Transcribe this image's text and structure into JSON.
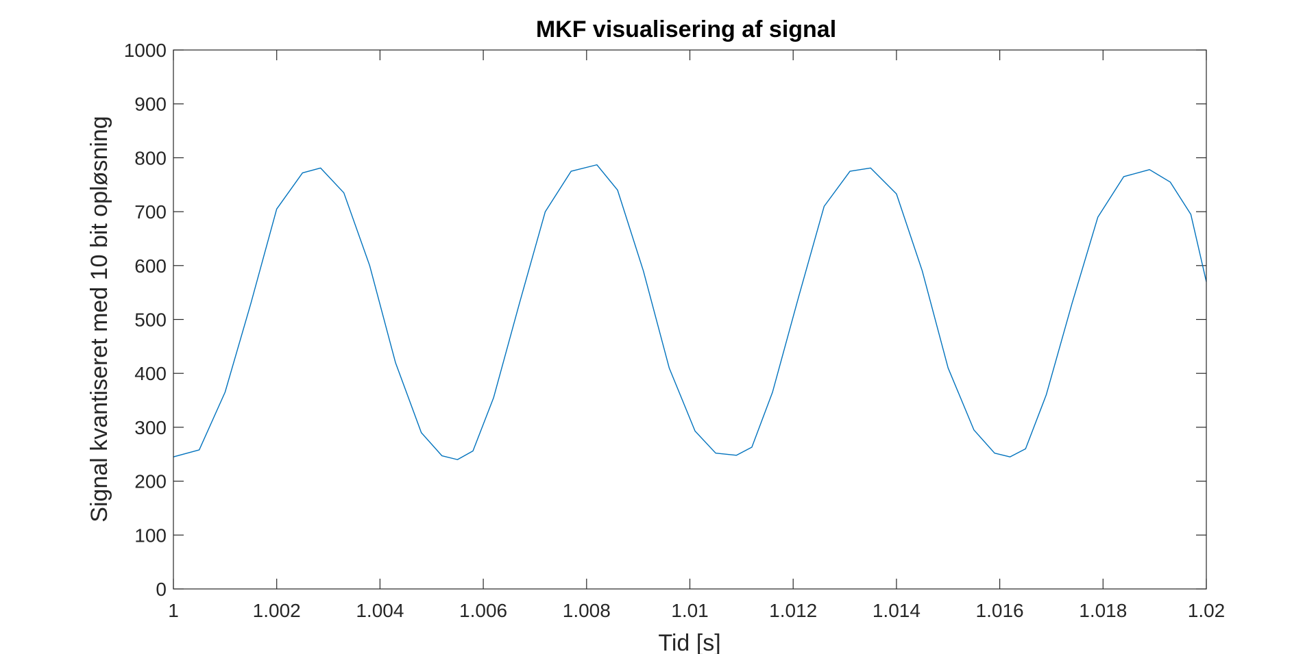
{
  "chart_data": {
    "type": "line",
    "title": "MKF visualisering af signal",
    "xlabel": "Tid [s]",
    "ylabel": "Signal kvantiseret med 10 bit opløsning",
    "xlim": [
      1,
      1.02
    ],
    "ylim": [
      0,
      1000
    ],
    "xticks": [
      1,
      1.002,
      1.004,
      1.006,
      1.008,
      1.01,
      1.012,
      1.014,
      1.016,
      1.018,
      1.02
    ],
    "xtick_labels": [
      "1",
      "1.002",
      "1.004",
      "1.006",
      "1.008",
      "1.01",
      "1.012",
      "1.014",
      "1.016",
      "1.018",
      "1.02"
    ],
    "yticks": [
      0,
      100,
      200,
      300,
      400,
      500,
      600,
      700,
      800,
      900,
      1000
    ],
    "ytick_labels": [
      "0",
      "100",
      "200",
      "300",
      "400",
      "500",
      "600",
      "700",
      "800",
      "900",
      "1000"
    ],
    "grid": false,
    "line_color": "#0072BD",
    "axis_color": "#262626",
    "series": [
      {
        "x": [
          1.0,
          1.0005,
          1.001,
          1.0015,
          1.002,
          1.0025,
          1.00285,
          1.0033,
          1.0038,
          1.0043,
          1.0048,
          1.0052,
          1.0055,
          1.0058,
          1.0062,
          1.0067,
          1.0072,
          1.0077,
          1.0082,
          1.0086,
          1.0091,
          1.0096,
          1.0101,
          1.0105,
          1.0109,
          1.0112,
          1.0116,
          1.0121,
          1.0126,
          1.0131,
          1.0135,
          1.014,
          1.0145,
          1.015,
          1.0155,
          1.0159,
          1.0162,
          1.0165,
          1.0169,
          1.0174,
          1.0179,
          1.0184,
          1.0189,
          1.0193,
          1.0197,
          1.02
        ],
        "y": [
          245,
          258,
          365,
          530,
          705,
          772,
          781,
          735,
          600,
          420,
          290,
          247,
          240,
          256,
          355,
          530,
          700,
          775,
          787,
          740,
          590,
          410,
          293,
          252,
          248,
          263,
          365,
          540,
          710,
          775,
          781,
          733,
          590,
          410,
          295,
          252,
          245,
          260,
          360,
          530,
          690,
          765,
          778,
          755,
          695,
          570
        ]
      }
    ]
  }
}
